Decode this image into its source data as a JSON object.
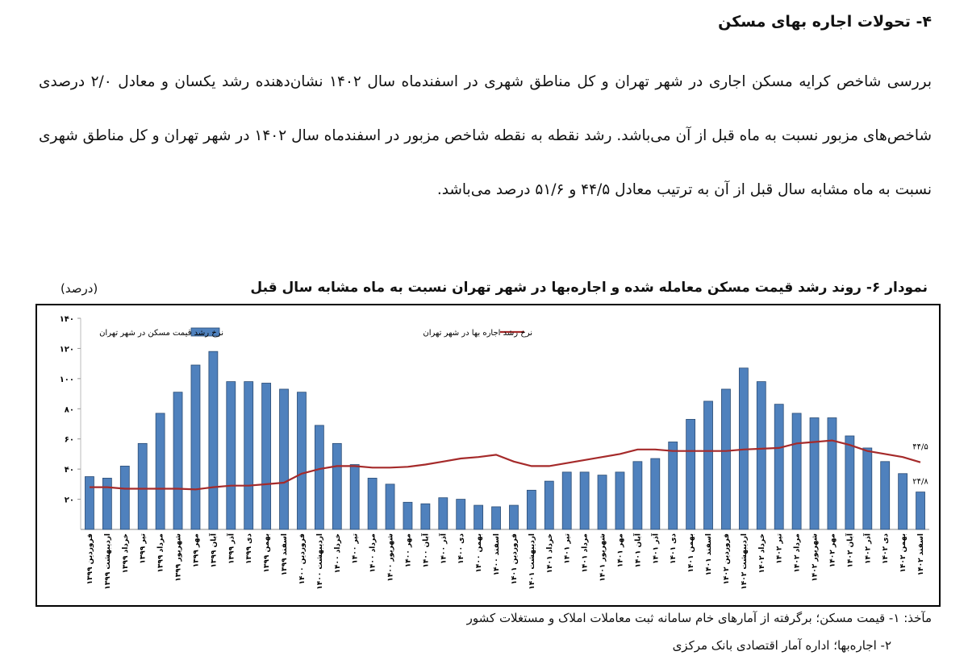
{
  "document": {
    "heading": "۴- تحولات اجاره بهای مسکن",
    "paragraph": "بررسی شاخص کرایه مسکن اجاری در شهر تهران و کل مناطق شهری در اسفندماه سال ۱۴۰۲ نشان‌دهنده رشد یکسان و معادل ۲/۰ درصدی شاخص‌های مزبور نسبت به ماه قبل از آن می‌باشد. رشد نقطه به نقطه شاخص مزبور در اسفندماه سال ۱۴۰۲ در شهر تهران و کل مناطق شهری نسبت به ماه مشابه سال قبل از آن به ترتیب معادل ۴۴/۵ و ۵۱/۶ درصد می‌باشد.",
    "sources": [
      "مآخذ: ۱- قیمت مسکن؛ برگرفته از آمارهای خام سامانه ثبت معاملات املاک و مستغلات کشور",
      "۲- اجاره‌بها؛ اداره آمار اقتصادی بانک مرکزی"
    ]
  },
  "chart_data": {
    "type": "bar-line",
    "title": "نمودار ۶- روند رشد قیمت مسکن معامله شده و اجاره‌بها در شهر تهران نسبت به ماه مشابه سال قبل",
    "ylabel": "(درصد)",
    "categories": [
      "فروردین ۱۳۹۹",
      "اردیبهشت ۱۳۹۹",
      "خرداد ۱۳۹۹",
      "تیر ۱۳۹۹",
      "مرداد ۱۳۹۹",
      "شهریور ۱۳۹۹",
      "مهر ۱۳۹۹",
      "آبان ۱۳۹۹",
      "آذر ۱۳۹۹",
      "دی ۱۳۹۹",
      "بهمن ۱۳۹۹",
      "اسفند ۱۳۹۹",
      "فروردین ۱۴۰۰",
      "اردیبهشت ۱۴۰۰",
      "خرداد ۱۴۰۰",
      "تیر ۱۴۰۰",
      "مرداد ۱۴۰۰",
      "شهریور ۱۴۰۰",
      "مهر ۱۴۰۰",
      "آبان ۱۴۰۰",
      "آذر ۱۴۰۰",
      "دی ۱۴۰۰",
      "بهمن ۱۴۰۰",
      "اسفند ۱۴۰۰",
      "فروردین ۱۴۰۱",
      "اردیبهشت ۱۴۰۱",
      "خرداد ۱۴۰۱",
      "تیر ۱۴۰۱",
      "مرداد ۱۴۰۱",
      "شهریور ۱۴۰۱",
      "مهر ۱۴۰۱",
      "آبان ۱۴۰۱",
      "آذر ۱۴۰۱",
      "دی ۱۴۰۱",
      "بهمن ۱۴۰۱",
      "اسفند ۱۴۰۱",
      "فروردین ۱۴۰۲",
      "اردیبهشت ۱۴۰۲",
      "خرداد ۱۴۰۲",
      "تیر ۱۴۰۲",
      "مرداد ۱۴۰۲",
      "شهریور ۱۴۰۲",
      "مهر ۱۴۰۲",
      "آبان ۱۴۰۲",
      "آذر ۱۴۰۲",
      "دی ۱۴۰۲",
      "بهمن ۱۴۰۲",
      "اسفند ۱۴۰۲"
    ],
    "series": [
      {
        "name": "نرخ رشد قیمت مسکن در شهر تهران",
        "type": "bar",
        "color": "#4f81bd",
        "values": [
          35,
          34,
          42,
          57,
          77,
          91,
          109,
          118,
          98,
          98,
          97,
          93,
          91,
          69,
          57,
          43,
          34,
          30,
          18,
          17,
          21,
          20,
          16,
          15,
          16,
          26,
          32,
          38,
          38,
          36,
          38,
          45,
          47,
          58,
          73,
          85,
          93,
          107,
          98,
          83,
          77,
          74,
          74,
          62,
          54,
          45,
          37,
          24.8
        ],
        "value_labels": [
          null,
          null,
          null,
          null,
          null,
          null,
          null,
          null,
          null,
          null,
          null,
          null,
          null,
          null,
          null,
          null,
          null,
          null,
          null,
          null,
          null,
          null,
          null,
          null,
          null,
          null,
          null,
          null,
          null,
          null,
          null,
          null,
          null,
          null,
          null,
          null,
          null,
          null,
          null,
          null,
          null,
          null,
          null,
          null,
          null,
          null,
          null,
          "۲۴/۸"
        ]
      },
      {
        "name": "نرخ رشد اجاره بها در شهر تهران",
        "type": "line",
        "color": "#a52a2a",
        "values": [
          28,
          28,
          27,
          27,
          27,
          27,
          26.5,
          28,
          29,
          29,
          30,
          31,
          37,
          40,
          42,
          42,
          41,
          41,
          41.5,
          43,
          45,
          47,
          48,
          49.5,
          45,
          42,
          42,
          44,
          46,
          48,
          50,
          53,
          53,
          52,
          52,
          52,
          52,
          53,
          53.5,
          54,
          57,
          58,
          59,
          56,
          52,
          50,
          48,
          44.5
        ],
        "value_labels": [
          null,
          null,
          null,
          null,
          null,
          null,
          null,
          null,
          null,
          null,
          null,
          null,
          null,
          null,
          null,
          null,
          null,
          null,
          null,
          null,
          null,
          null,
          null,
          null,
          null,
          null,
          null,
          null,
          null,
          null,
          null,
          null,
          null,
          null,
          null,
          null,
          null,
          null,
          null,
          null,
          null,
          null,
          null,
          null,
          null,
          null,
          null,
          "۴۴/۵"
        ]
      }
    ],
    "ylim": [
      0,
      140
    ],
    "yticks": [
      {
        "value": 20,
        "label": "۲۰"
      },
      {
        "value": 40,
        "label": "۴۰"
      },
      {
        "value": 60,
        "label": "۶۰"
      },
      {
        "value": 80,
        "label": "۸۰"
      },
      {
        "value": 100,
        "label": "۱۰۰"
      },
      {
        "value": 120,
        "label": "۱۲۰"
      },
      {
        "value": 140,
        "label": "۱۴۰"
      }
    ],
    "grid": false,
    "legend": "top"
  }
}
